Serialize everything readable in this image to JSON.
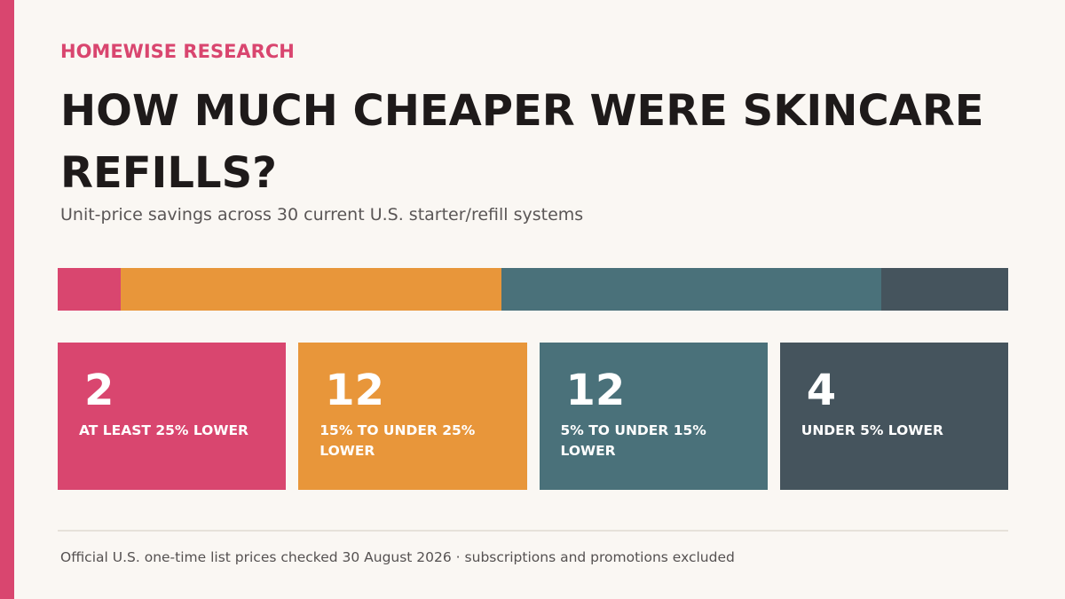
{
  "colors": {
    "accent": "#d9466f",
    "segment_1": "#d9466f",
    "segment_2": "#e8963a",
    "segment_3": "#4a717a",
    "segment_4": "#45545d"
  },
  "header": {
    "kicker": "HOMEWISE RESEARCH",
    "title": "HOW MUCH CHEAPER WERE SKINCARE REFILLS?",
    "subtitle": "Unit-price savings across 30 current U.S. starter/refill systems"
  },
  "chart_data": {
    "type": "bar",
    "stacked": true,
    "orientation": "horizontal",
    "title": "HOW MUCH CHEAPER WERE SKINCARE REFILLS?",
    "subtitle": "Unit-price savings across 30 current U.S. starter/refill systems",
    "total": 30,
    "categories": [
      "AT LEAST 25% LOWER",
      "15% TO UNDER 25% LOWER",
      "5% TO UNDER 15% LOWER",
      "UNDER 5% LOWER"
    ],
    "values": [
      2,
      12,
      12,
      4
    ],
    "legend": "none"
  },
  "footer": {
    "note": "Official U.S. one-time list prices checked 30 August 2026 · subscriptions and promotions excluded"
  }
}
